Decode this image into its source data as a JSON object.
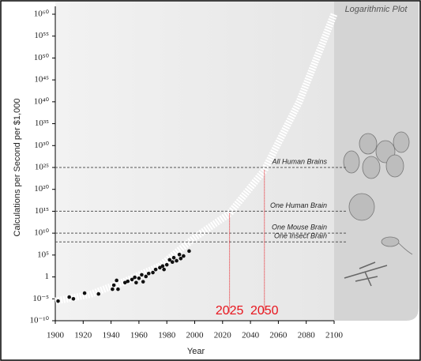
{
  "chart_data": {
    "type": "scatter",
    "panel_title": "Logarithmic Plot",
    "x_label": "Year",
    "y_label": "Calculations per Second per $1,000",
    "log_y": true,
    "x": [
      1902,
      1910,
      1913,
      1921,
      1931,
      1941,
      1942,
      1944,
      1945,
      1950,
      1952,
      1955,
      1957,
      1958,
      1960,
      1962,
      1963,
      1965,
      1967,
      1970,
      1972,
      1975,
      1977,
      1978,
      1980,
      1982,
      1984,
      1985,
      1987,
      1989,
      1990,
      1992,
      1996
    ],
    "values": [
      3e-06,
      2.5e-05,
      1e-05,
      0.0002,
      0.00013,
      0.0016,
      0.013,
      0.16,
      0.0016,
      0.05,
      0.1,
      0.25,
      0.8,
      0.05,
      0.5,
      3,
      0.08,
      1.3,
      6,
      10,
      50,
      130,
      300,
      50,
      600,
      8000,
      2500,
      25000,
      5000,
      130000,
      16000,
      60000,
      800000
    ],
    "color": "#111111",
    "trend": {
      "x": [
        1900,
        1925,
        1950,
        1975,
        2000,
        2025,
        2050,
        2075,
        2100
      ],
      "values": [
        3e-06,
        0.0001,
        0.1,
        300,
        1000000000.0,
        300000000000000.0,
        2.5e+24,
        1e+40,
        1e+60
      ],
      "color": "#ffffff"
    },
    "reference_lines": [
      {
        "label": "All Human Brains",
        "value": 1e+25
      },
      {
        "label": "One Human Brain",
        "value": 1000000000000000.0
      },
      {
        "label": "One Mouse Brain",
        "value": 10000000000.0
      },
      {
        "label": "One Insect Brain",
        "value": 100000000.0
      }
    ],
    "projection_years": [
      2025,
      2050
    ],
    "projection_color": "#e8141c",
    "xlim": [
      1900,
      2100
    ],
    "xticks": [
      1900,
      1920,
      1940,
      1960,
      1980,
      2000,
      2020,
      2040,
      2060,
      2080,
      2100
    ],
    "ylim": [
      1e-10,
      1e+60
    ],
    "yticks": [
      {
        "value": 1e-10,
        "label": "10⁻¹⁰"
      },
      {
        "value": 1e-05,
        "label": "10⁻⁵"
      },
      1,
      {
        "value": 100000.0,
        "label": "10⁵"
      },
      {
        "value": 10000000000.0,
        "label": "10¹⁰"
      },
      {
        "value": 1000000000000000.0,
        "label": "10¹⁵"
      },
      {
        "value": 1e+20,
        "label": "10²⁰"
      },
      {
        "value": 1e+25,
        "label": "10²⁵"
      },
      {
        "value": 1e+30,
        "label": "10³⁰"
      },
      {
        "value": 1e+35,
        "label": "10³⁵"
      },
      {
        "value": 1e+40,
        "label": "10⁴⁰"
      },
      {
        "value": 1e+45,
        "label": "10⁴⁵"
      },
      {
        "value": 1e+50,
        "label": "10⁵⁰"
      },
      {
        "value": 1e+55,
        "label": "10⁵⁵"
      },
      {
        "value": 1e+60,
        "label": "10⁶⁰"
      }
    ]
  }
}
